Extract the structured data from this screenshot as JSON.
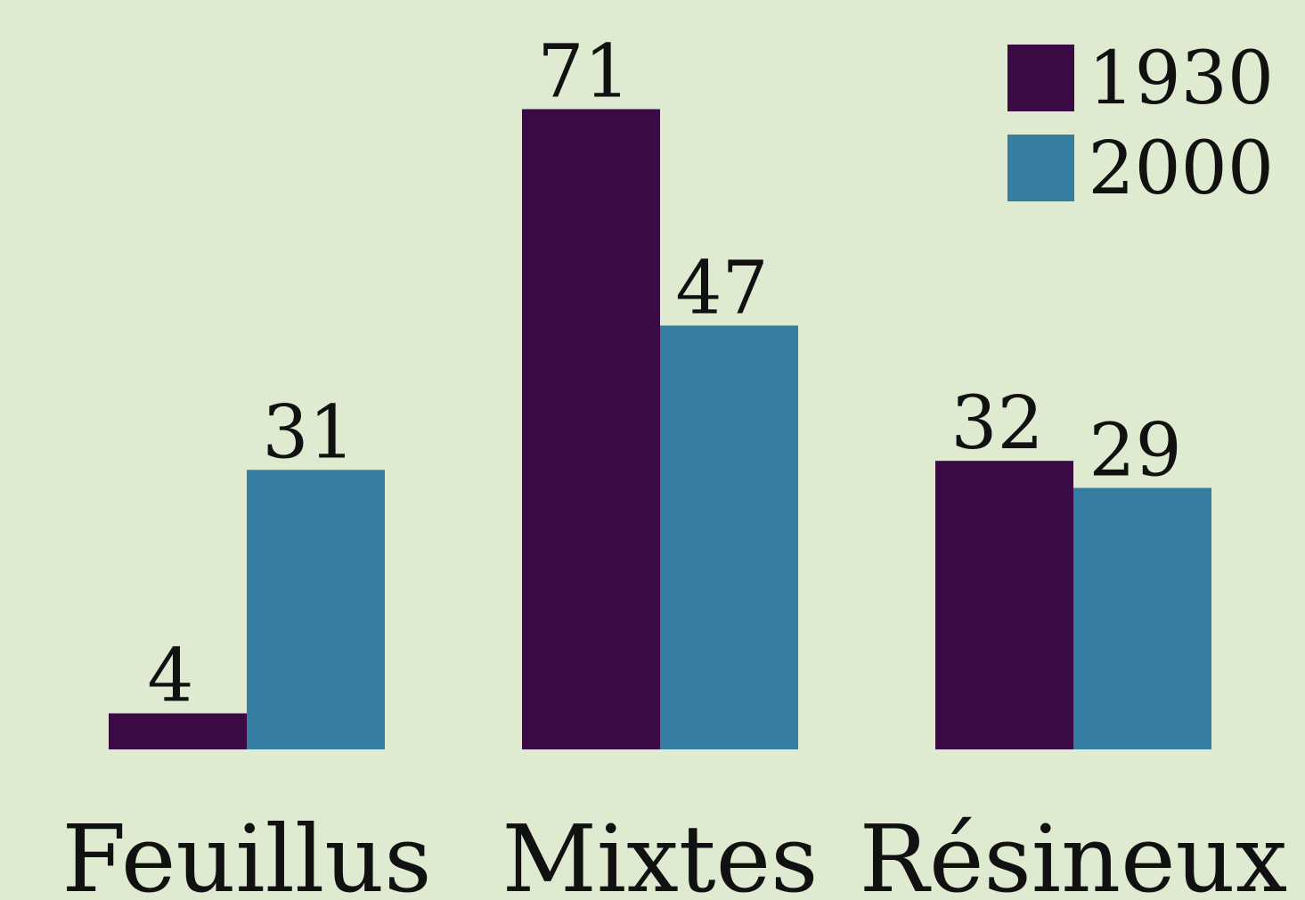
{
  "chart_data": {
    "type": "bar",
    "categories": [
      "Feuillus",
      "Mixtes",
      "Résineux"
    ],
    "series": [
      {
        "name": "1930",
        "values": [
          4,
          71,
          32
        ],
        "color": "#3c0b46"
      },
      {
        "name": "2000",
        "values": [
          31,
          47,
          29
        ],
        "color": "#357ea2"
      }
    ],
    "ylim": [
      0,
      80
    ],
    "legend_position": "top-right",
    "grid": false,
    "background_color": "#deebd0"
  }
}
